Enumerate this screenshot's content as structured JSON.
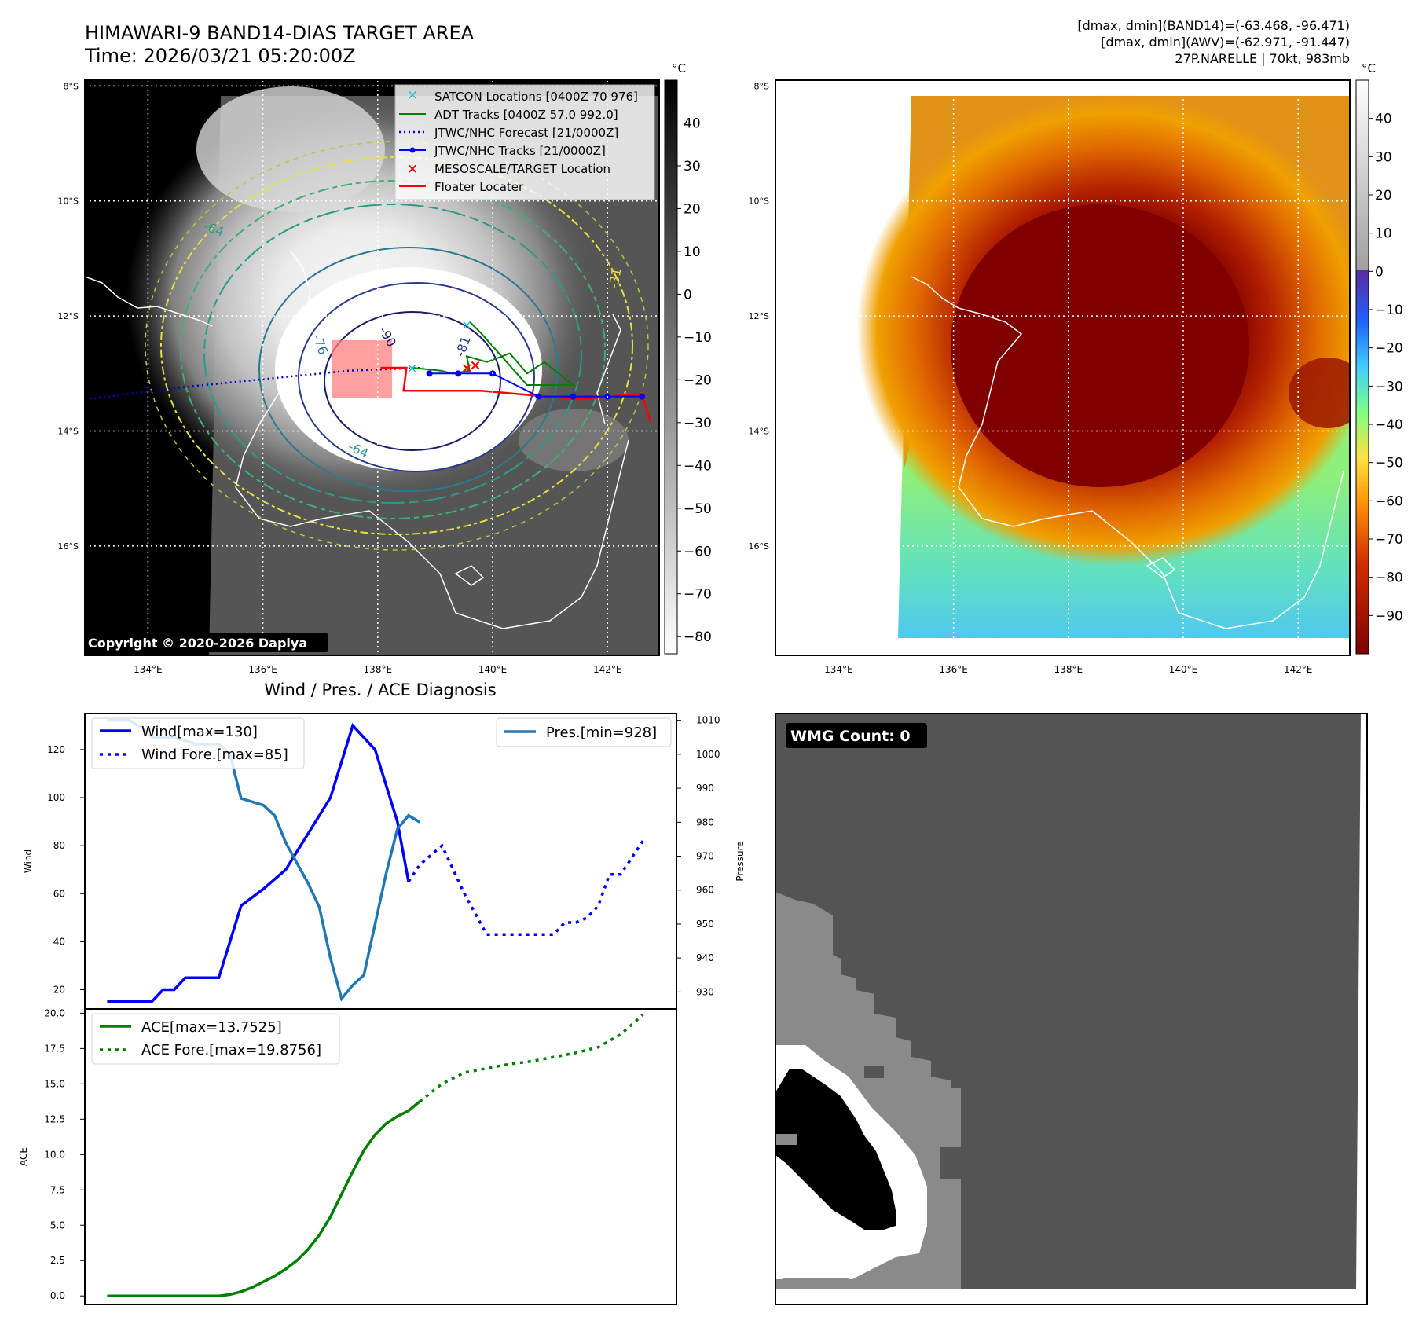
{
  "header": {
    "title": "HIMAWARI-9 BAND14-DIAS TARGET AREA",
    "time": "Time: 2026/03/21 05:20:00Z",
    "stats_line1": "[dmax, dmin](BAND14)=(-63.468, -96.471)",
    "stats_line2": "[dmax, dmin](AWV)=(-62.971, -91.447)",
    "stats_line3": "27P.NARELLE | 70kt, 983mb"
  },
  "map": {
    "lat_labels": [
      "8°S",
      "10°S",
      "12°S",
      "14°S",
      "16°S"
    ],
    "lat_values": [
      -8,
      -10,
      -12,
      -14,
      -16
    ],
    "lon_labels": [
      "134°E",
      "136°E",
      "138°E",
      "140°E",
      "142°E"
    ],
    "lon_values": [
      134,
      136,
      138,
      140,
      142
    ],
    "lon_range": [
      132.9,
      142.9
    ],
    "lat_range": [
      -17.9,
      -7.9
    ],
    "copyright": "Copyright © 2020-2026 Dapiya",
    "contour_labels": [
      "-90",
      "-81",
      "-76",
      "-64",
      "-64",
      "-31"
    ],
    "legend": [
      {
        "label": "SATCON Locations [0400Z 70 976]",
        "color": "#17becf",
        "style": "x-marker"
      },
      {
        "label": "ADT Tracks [0400Z 57.0 992.0]",
        "color": "#008000",
        "style": "solid"
      },
      {
        "label": "JTWC/NHC Forecast [21/0000Z]",
        "color": "#0000cc",
        "style": "dotted"
      },
      {
        "label": "JTWC/NHC Tracks [21/0000Z]",
        "color": "#0000ff",
        "style": "solid-dot"
      },
      {
        "label": "MESOSCALE/TARGET Location",
        "color": "#ff0000",
        "style": "x-marker"
      },
      {
        "label": "Floater Locater",
        "color": "#ff0000",
        "style": "solid"
      }
    ],
    "target_box": {
      "lon": [
        137.2,
        138.25
      ],
      "lat": [
        -12.42,
        -13.42
      ]
    },
    "jtwc_track": [
      [
        138.9,
        -13.0
      ],
      [
        139.4,
        -13.0
      ],
      [
        140.0,
        -13.0
      ],
      [
        140.8,
        -13.4
      ],
      [
        141.4,
        -13.4
      ],
      [
        142.0,
        -13.4
      ],
      [
        142.6,
        -13.4
      ]
    ],
    "jtwc_forecast": [
      [
        132.9,
        -13.45
      ],
      [
        134.5,
        -13.25
      ],
      [
        136.0,
        -13.1
      ],
      [
        137.5,
        -12.95
      ],
      [
        138.8,
        -12.9
      ]
    ],
    "floater_track": [
      [
        138.05,
        -12.9
      ],
      [
        138.5,
        -12.9
      ],
      [
        138.45,
        -13.3
      ],
      [
        139.8,
        -13.3
      ],
      [
        141.5,
        -13.45
      ],
      [
        142.6,
        -13.35
      ],
      [
        142.75,
        -13.85
      ]
    ],
    "adt_track": [
      [
        138.6,
        -12.9
      ],
      [
        139.1,
        -12.95
      ],
      [
        139.3,
        -13.0
      ],
      [
        139.6,
        -12.95
      ],
      [
        139.55,
        -12.7
      ],
      [
        139.9,
        -12.8
      ],
      [
        140.3,
        -12.65
      ],
      [
        140.6,
        -13.0
      ],
      [
        140.9,
        -12.8
      ],
      [
        141.4,
        -13.2
      ],
      [
        140.6,
        -13.2
      ],
      [
        139.8,
        -12.3
      ],
      [
        139.6,
        -12.1
      ]
    ],
    "satcon_points": [
      [
        139.55,
        -12.15
      ],
      [
        138.6,
        -12.9
      ]
    ],
    "target_points": [
      [
        139.7,
        -12.85
      ],
      [
        139.55,
        -12.9
      ]
    ]
  },
  "colorbar_left": {
    "unit": "°C",
    "ticks": [
      "40",
      "30",
      "20",
      "10",
      "0",
      "−10",
      "−20",
      "−30",
      "−40",
      "−50",
      "−60",
      "−70",
      "−80"
    ],
    "tick_values": [
      40,
      30,
      20,
      10,
      0,
      -10,
      -20,
      -30,
      -40,
      -50,
      -60,
      -70,
      -80
    ],
    "range": [
      -84,
      50
    ]
  },
  "colorbar_right": {
    "unit": "°C",
    "ticks": [
      "40",
      "30",
      "20",
      "10",
      "0",
      "−10",
      "−20",
      "−30",
      "−40",
      "−50",
      "−60",
      "−70",
      "−80",
      "−90"
    ],
    "tick_values": [
      40,
      30,
      20,
      10,
      0,
      -10,
      -20,
      -30,
      -40,
      -50,
      -60,
      -70,
      -80,
      -90
    ],
    "range": [
      -100,
      50
    ]
  },
  "chart_data": [
    {
      "type": "line",
      "title": "Wind / Pres. / ACE Diagnosis",
      "ylabel": "Wind",
      "y2label": "Pressure",
      "ylim": [
        12,
        135
      ],
      "y2lim": [
        925,
        1012
      ],
      "xlim": [
        0,
        26.5
      ],
      "yticks": [
        20,
        40,
        60,
        80,
        100,
        120
      ],
      "y2ticks": [
        930,
        940,
        950,
        960,
        970,
        980,
        990,
        1000,
        1010
      ],
      "series": [
        {
          "name": "Wind[max=130]",
          "style": "solid",
          "color": "#0000ff",
          "x": [
            1,
            2,
            3,
            3.5,
            4,
            4.5,
            5,
            6,
            7,
            8,
            9,
            10,
            11,
            12,
            13,
            14,
            14.5
          ],
          "values": [
            15,
            15,
            15,
            20,
            20,
            25,
            25,
            25,
            55,
            62,
            70,
            85,
            100,
            130,
            120,
            90,
            65
          ]
        },
        {
          "name": "Wind Fore.[max=85]",
          "style": "dotted",
          "color": "#0000ff",
          "x": [
            14.5,
            15,
            16,
            17,
            18,
            19,
            20,
            21,
            21.5,
            22,
            22.5,
            23,
            23.5,
            24,
            25
          ],
          "values": [
            65,
            72,
            80,
            60,
            43,
            43,
            43,
            43,
            48,
            48,
            50,
            55,
            68,
            68,
            82
          ]
        },
        {
          "name": "Pres.[min=928]",
          "style": "solid",
          "color": "#1f77b4",
          "axis": "right",
          "x": [
            1,
            2,
            2.5,
            3,
            4,
            5,
            6,
            6.5,
            7,
            8,
            8.5,
            9,
            9.5,
            10,
            10.5,
            11,
            11.5,
            12,
            12.5,
            13,
            13.5,
            14,
            14.5,
            15
          ],
          "values": [
            1010,
            1010,
            1008,
            1005,
            1005,
            1003,
            1003,
            1000,
            987,
            985,
            982,
            974,
            968,
            962,
            955,
            940,
            928,
            932,
            935,
            950,
            965,
            978,
            982,
            980
          ]
        }
      ]
    },
    {
      "type": "line",
      "ylabel": "ACE",
      "ylim": [
        -0.6,
        20.3
      ],
      "xlim": [
        0,
        26.5
      ],
      "yticks": [
        0.0,
        2.5,
        5.0,
        7.5,
        10.0,
        12.5,
        15.0,
        17.5,
        20.0
      ],
      "ytick_labels": [
        "0.0",
        "2.5",
        "5.0",
        "7.5",
        "10.0",
        "12.5",
        "15.0",
        "17.5",
        "20.0"
      ],
      "series": [
        {
          "name": "ACE[max=13.7525]",
          "style": "solid",
          "color": "#008000",
          "x": [
            1,
            2,
            3,
            4,
            5,
            6,
            6.5,
            7,
            7.5,
            8,
            8.5,
            9,
            9.5,
            10,
            10.5,
            11,
            11.5,
            12,
            12.5,
            13,
            13.5,
            14,
            14.5,
            15
          ],
          "values": [
            0,
            0,
            0,
            0,
            0,
            0,
            0.1,
            0.3,
            0.6,
            1.0,
            1.4,
            1.9,
            2.5,
            3.3,
            4.3,
            5.6,
            7.2,
            8.8,
            10.3,
            11.4,
            12.2,
            12.7,
            13.1,
            13.75
          ]
        },
        {
          "name": "ACE Fore.[max=19.8756]",
          "style": "dotted",
          "color": "#008000",
          "x": [
            15,
            16,
            17,
            18,
            19,
            20,
            21,
            22,
            23,
            24,
            25
          ],
          "values": [
            13.75,
            15.0,
            15.8,
            16.1,
            16.4,
            16.6,
            16.9,
            17.2,
            17.6,
            18.5,
            19.9
          ]
        }
      ]
    }
  ],
  "wmg": {
    "label": "WMG Count: 0",
    "colors": {
      "bg": "#545454",
      "gray": "#8a8a8a",
      "white": "#ffffff",
      "black": "#000000"
    }
  }
}
